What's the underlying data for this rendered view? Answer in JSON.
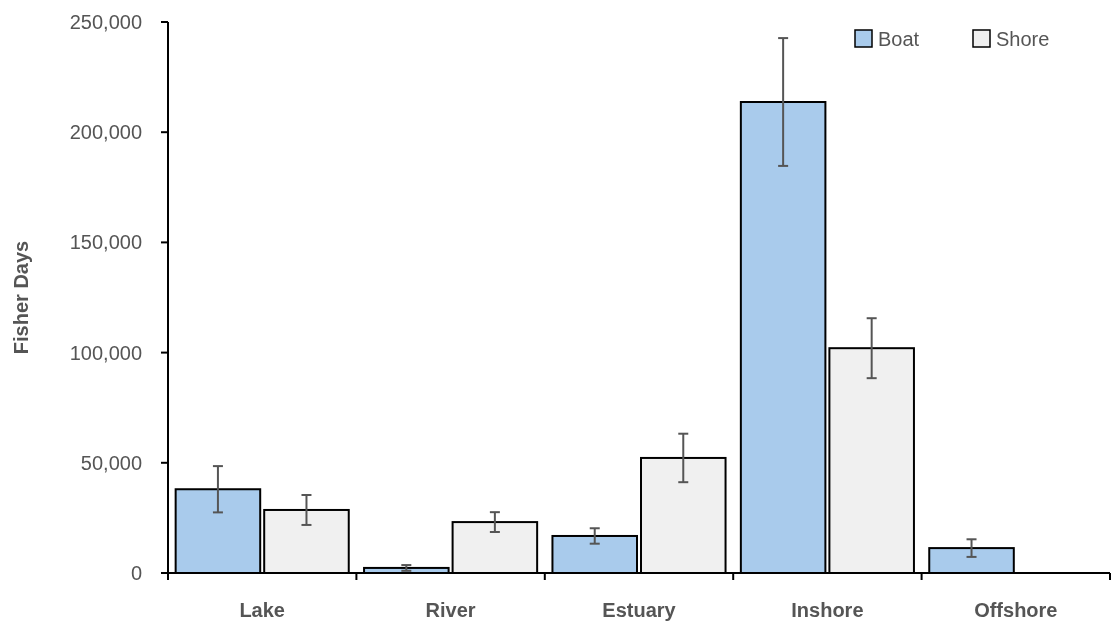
{
  "chart_data": {
    "type": "bar",
    "ylabel": "Fisher Days",
    "categories": [
      "Lake",
      "River",
      "Estuary",
      "Inshore",
      "Offshore"
    ],
    "series": [
      {
        "name": "Boat",
        "color": "#a9cbec",
        "values": [
          38000,
          2300,
          16800,
          213700,
          11300
        ],
        "errors": [
          10500,
          1300,
          3500,
          29000,
          4000
        ]
      },
      {
        "name": "Shore",
        "color": "#f0f0f0",
        "values": [
          28600,
          23100,
          52200,
          102000,
          null
        ],
        "errors": [
          6800,
          4500,
          11000,
          13600,
          null
        ]
      }
    ],
    "ylim": [
      0,
      250000
    ],
    "yticks": [
      {
        "value": 0,
        "label": "0"
      },
      {
        "value": 50000,
        "label": "50,000"
      },
      {
        "value": 100000,
        "label": "100,000"
      },
      {
        "value": 150000,
        "label": "150,000"
      },
      {
        "value": 200000,
        "label": "200,000"
      },
      {
        "value": 250000,
        "label": "250,000"
      }
    ],
    "grid": false,
    "legend": "top right"
  }
}
